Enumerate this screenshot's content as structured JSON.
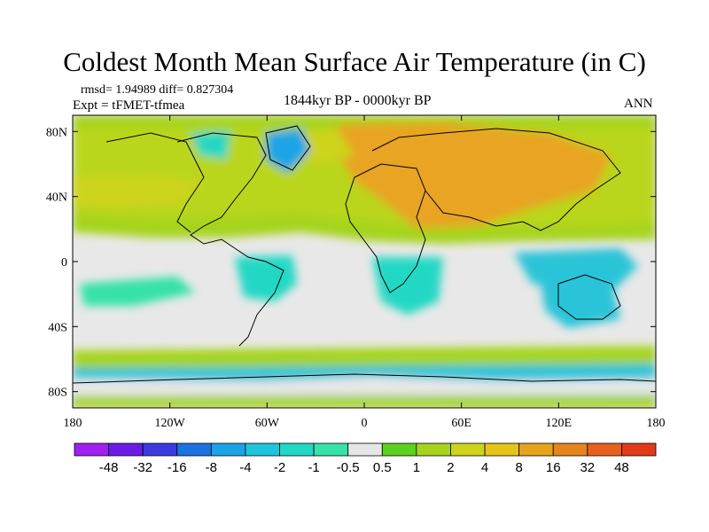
{
  "title": "Coldest Month Mean Surface Air Temperature (in C)",
  "stats": "rmsd= 1.94989 diff= 0.827304",
  "experiment": "Expt = tFMET-tfmea",
  "period": "1844kyr BP - 0000kyr BP",
  "season": "ANN",
  "map": {
    "projection": "cylindrical equidistant",
    "lon_range": [
      -180,
      180
    ],
    "lat_range": [
      -90,
      90
    ],
    "lat_ticks": [
      {
        "value": 80,
        "label": "80N"
      },
      {
        "value": 40,
        "label": "40N"
      },
      {
        "value": 0,
        "label": "0"
      },
      {
        "value": -40,
        "label": "40S"
      },
      {
        "value": -80,
        "label": "80S"
      }
    ],
    "lon_ticks": [
      {
        "value": -180,
        "label": "180"
      },
      {
        "value": -120,
        "label": "120W"
      },
      {
        "value": -60,
        "label": "60W"
      },
      {
        "value": 0,
        "label": "0"
      },
      {
        "value": 60,
        "label": "60E"
      },
      {
        "value": 120,
        "label": "120E"
      },
      {
        "value": 180,
        "label": "180"
      }
    ],
    "background_color": "#e8e8e8",
    "dominant_regions": [
      {
        "desc": "northern high latitudes",
        "color": "#a6d41c"
      },
      {
        "desc": "eurasia interior",
        "color": "#e8a422"
      },
      {
        "desc": "tropics",
        "color": "#e8e8e8"
      },
      {
        "desc": "southern ocean",
        "color": "#2cc4d8"
      }
    ]
  },
  "colorbar": {
    "colors": [
      "#a020f0",
      "#6a1ce6",
      "#3a3ae0",
      "#1d72e0",
      "#1aa4e6",
      "#1cc4dc",
      "#22d8c4",
      "#36e2a8",
      "#e6e6e6",
      "#5bd21e",
      "#a6d41c",
      "#cdd41a",
      "#e6c41a",
      "#e6a41c",
      "#e6841e",
      "#e6601e",
      "#e23a1a"
    ],
    "labels": [
      "-48",
      "-32",
      "-16",
      "-8",
      "-4",
      "-2",
      "-1",
      "-0.5",
      "0.5",
      "1",
      "2",
      "4",
      "8",
      "16",
      "32",
      "48"
    ]
  }
}
